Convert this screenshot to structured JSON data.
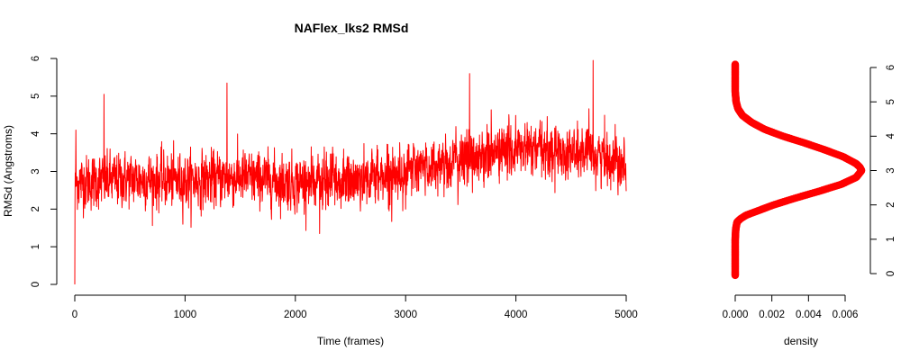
{
  "chart_data": [
    {
      "type": "line",
      "title": "NAFlex_lks2 RMSd",
      "xlabel": "Time (frames)",
      "ylabel": "RMSd (Angstroms)",
      "xlim": [
        0,
        5000
      ],
      "ylim": [
        0,
        6
      ],
      "x_ticks": [
        "0",
        "1000",
        "2000",
        "3000",
        "4000",
        "5000"
      ],
      "y_ticks": [
        "0",
        "1",
        "2",
        "3",
        "4",
        "5",
        "6"
      ],
      "color": "#ff0000",
      "grid": false,
      "trend": {
        "x": [
          0,
          500,
          1000,
          1500,
          2000,
          2500,
          3000,
          3500,
          4000,
          4500,
          5000
        ],
        "y": [
          2.7,
          2.8,
          2.75,
          2.85,
          2.7,
          2.75,
          3.0,
          3.3,
          3.6,
          3.5,
          3.3
        ]
      },
      "fluctuation_range": [
        1.35,
        5.95
      ],
      "notable_points": [
        {
          "x": 0,
          "y": 0.0
        },
        {
          "x": 10,
          "y": 4.1
        },
        {
          "x": 265,
          "y": 5.05
        },
        {
          "x": 1380,
          "y": 5.35
        },
        {
          "x": 2220,
          "y": 1.35
        },
        {
          "x": 3580,
          "y": 5.6
        },
        {
          "x": 4700,
          "y": 5.95
        }
      ]
    },
    {
      "type": "scatter",
      "title": "",
      "xlabel": "density",
      "ylabel": "",
      "xlim": [
        0,
        0.007
      ],
      "ylim": [
        0,
        6
      ],
      "x_ticks": [
        "0.000",
        "0.002",
        "0.004",
        "0.006"
      ],
      "y_ticks": [
        "0",
        "1",
        "2",
        "3",
        "4",
        "5",
        "6"
      ],
      "y_axis_side": "right",
      "color": "#ff0000",
      "grid": false,
      "density_curve": {
        "y": [
          -0.05,
          0.5,
          1.0,
          1.3,
          1.5,
          1.6,
          1.7,
          1.8,
          2.0,
          2.2,
          2.4,
          2.6,
          2.8,
          3.0,
          3.1,
          3.2,
          3.4,
          3.6,
          3.8,
          4.0,
          4.2,
          4.4,
          4.6,
          4.8,
          5.0,
          5.3,
          6.1
        ],
        "x": [
          0.0,
          0.0,
          0.0,
          3e-05,
          0.0001,
          0.0003,
          0.0006,
          0.0011,
          0.0021,
          0.0033,
          0.0046,
          0.0058,
          0.0066,
          0.0069,
          0.0068,
          0.0066,
          0.0059,
          0.0049,
          0.0038,
          0.0026,
          0.0016,
          0.0009,
          0.0004,
          0.00015,
          5e-05,
          0.0,
          0.0
        ]
      }
    }
  ]
}
